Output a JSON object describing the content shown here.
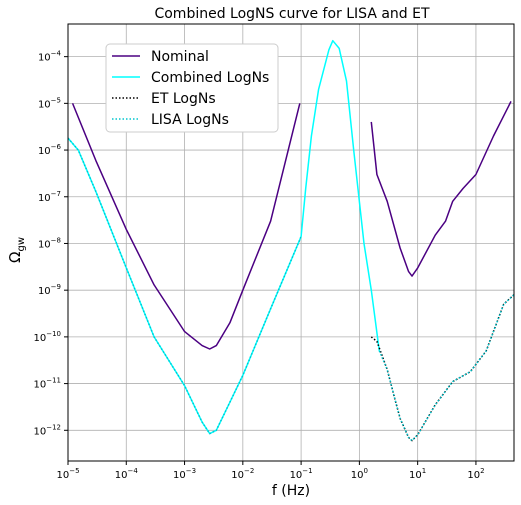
{
  "chart_data": {
    "type": "line",
    "title": "Combined LogNS curve for LISA and ET",
    "xlabel": "f (Hz)",
    "ylabel": "Ω",
    "ylabel_subscript": "gw",
    "x_scale": "log",
    "y_scale": "log",
    "xlim": [
      1e-05,
      450
    ],
    "ylim": [
      2.2e-13,
      0.0005
    ],
    "grid": true,
    "legend_position": "upper-left",
    "x_ticks": [
      {
        "value": 1e-05,
        "base": "10",
        "exp": "−5"
      },
      {
        "value": 0.0001,
        "base": "10",
        "exp": "−4"
      },
      {
        "value": 0.001,
        "base": "10",
        "exp": "−3"
      },
      {
        "value": 0.01,
        "base": "10",
        "exp": "−2"
      },
      {
        "value": 0.1,
        "base": "10",
        "exp": "−1"
      },
      {
        "value": 1,
        "base": "10",
        "exp": "0"
      },
      {
        "value": 10,
        "base": "10",
        "exp": "1"
      },
      {
        "value": 100,
        "base": "10",
        "exp": "2"
      }
    ],
    "y_ticks": [
      {
        "value": 1e-12,
        "base": "10",
        "exp": "−12"
      },
      {
        "value": 1e-11,
        "base": "10",
        "exp": "−11"
      },
      {
        "value": 1e-10,
        "base": "10",
        "exp": "−10"
      },
      {
        "value": 1e-09,
        "base": "10",
        "exp": "−9"
      },
      {
        "value": 1e-08,
        "base": "10",
        "exp": "−8"
      },
      {
        "value": 1e-07,
        "base": "10",
        "exp": "−7"
      },
      {
        "value": 1e-06,
        "base": "10",
        "exp": "−6"
      },
      {
        "value": 1e-05,
        "base": "10",
        "exp": "−5"
      },
      {
        "value": 0.0001,
        "base": "10",
        "exp": "−4"
      }
    ],
    "series": [
      {
        "name": "Nominal",
        "color": "#4b0082",
        "style": "solid",
        "segments": [
          [
            [
              1.2e-05,
              1e-05
            ],
            [
              3e-05,
              6e-07
            ],
            [
              0.0001,
              2e-08
            ],
            [
              0.0003,
              1.3e-09
            ],
            [
              0.001,
              1.3e-10
            ],
            [
              0.002,
              6.5e-11
            ],
            [
              0.0027,
              5.5e-11
            ],
            [
              0.0035,
              6.5e-11
            ],
            [
              0.006,
              2e-10
            ],
            [
              0.01,
              1e-09
            ],
            [
              0.03,
              3e-08
            ],
            [
              0.095,
              1e-05
            ]
          ],
          [
            [
              1.6,
              4e-06
            ],
            [
              2,
              3e-07
            ],
            [
              3,
              8e-08
            ],
            [
              5,
              8e-09
            ],
            [
              7,
              2.5e-09
            ],
            [
              8,
              2e-09
            ],
            [
              10,
              3e-09
            ],
            [
              20,
              1.5e-08
            ],
            [
              30,
              3e-08
            ],
            [
              40,
              8e-08
            ],
            [
              60,
              1.5e-07
            ],
            [
              100,
              3e-07
            ],
            [
              200,
              2e-06
            ],
            [
              400,
              1.1e-05
            ]
          ]
        ]
      },
      {
        "name": " Combined LogNs",
        "color": "#00ffff",
        "style": "solid",
        "segments": [
          [
            [
              1e-05,
              1.8e-06
            ],
            [
              1.5e-05,
              1e-06
            ],
            [
              3e-05,
              1.3e-07
            ],
            [
              0.0001,
              3e-09
            ],
            [
              0.0003,
              1e-10
            ],
            [
              0.001,
              9e-12
            ],
            [
              0.002,
              1.5e-12
            ],
            [
              0.0027,
              8.5e-13
            ],
            [
              0.0035,
              1e-12
            ],
            [
              0.006,
              4e-12
            ],
            [
              0.01,
              1.5e-11
            ],
            [
              0.03,
              4e-10
            ],
            [
              0.1,
              1.4e-08
            ],
            [
              0.12,
              1.5e-07
            ],
            [
              0.15,
              2e-06
            ],
            [
              0.2,
              2e-05
            ],
            [
              0.3,
              0.00014
            ],
            [
              0.35,
              0.00022
            ],
            [
              0.45,
              0.00015
            ],
            [
              0.6,
              3e-05
            ],
            [
              0.8,
              1e-06
            ],
            [
              1.2,
              1e-08
            ],
            [
              1.6,
              1e-09
            ],
            [
              2.2,
              5e-11
            ]
          ]
        ]
      },
      {
        "name": "ET LogNs",
        "color": "#000000",
        "style": "dotted",
        "segments": [
          [
            [
              1.6,
              1e-10
            ],
            [
              2,
              8e-11
            ],
            [
              3,
              2e-11
            ],
            [
              4,
              5e-12
            ],
            [
              5,
              1.8e-12
            ],
            [
              7,
              7e-13
            ],
            [
              8,
              6e-13
            ],
            [
              10,
              8e-13
            ],
            [
              20,
              3.5e-12
            ],
            [
              40,
              1.1e-11
            ],
            [
              80,
              1.8e-11
            ],
            [
              150,
              5e-11
            ],
            [
              300,
              5e-10
            ],
            [
              450,
              8e-10
            ]
          ]
        ]
      },
      {
        "name": "LISA LogNs",
        "color": "#00c5cd",
        "style": "dotted",
        "segments": [
          [
            [
              1e-05,
              1.8e-06
            ],
            [
              1.5e-05,
              1e-06
            ],
            [
              3e-05,
              1.3e-07
            ],
            [
              0.0001,
              3e-09
            ],
            [
              0.0003,
              1e-10
            ],
            [
              0.001,
              9e-12
            ],
            [
              0.002,
              1.5e-12
            ],
            [
              0.0027,
              8.5e-13
            ],
            [
              0.0035,
              1e-12
            ],
            [
              0.006,
              4e-12
            ],
            [
              0.01,
              1.5e-11
            ],
            [
              0.03,
              4e-10
            ],
            [
              0.1,
              1.4e-08
            ]
          ],
          [
            [
              2.2,
              5e-11
            ],
            [
              3,
              2e-11
            ],
            [
              4,
              5e-12
            ],
            [
              5,
              1.8e-12
            ],
            [
              7,
              7e-13
            ],
            [
              8,
              6e-13
            ],
            [
              10,
              8e-13
            ],
            [
              20,
              3.5e-12
            ],
            [
              40,
              1.1e-11
            ],
            [
              80,
              1.8e-11
            ],
            [
              150,
              5e-11
            ],
            [
              300,
              5e-10
            ],
            [
              450,
              8e-10
            ]
          ]
        ]
      }
    ]
  }
}
